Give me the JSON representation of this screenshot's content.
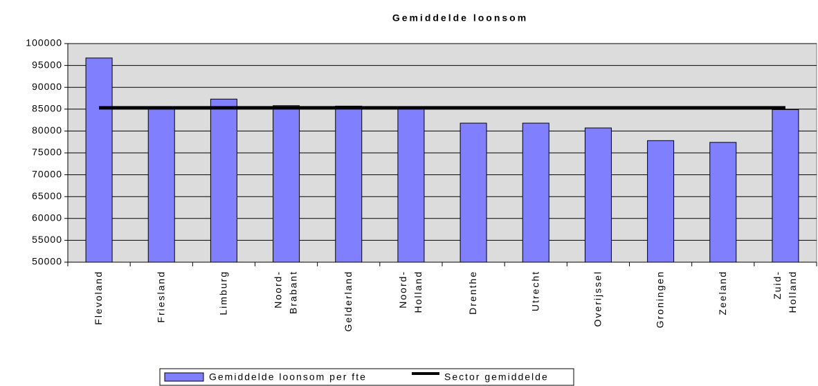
{
  "chart_data": {
    "type": "bar",
    "title": "Gemiddelde loonsom",
    "categories": [
      "Flevoland",
      "Friesland",
      "Limburg",
      "Noord-\nBrabant",
      "Gelderland",
      "Noord-\nHolland",
      "Drenthe",
      "Utrecht",
      "Overijssel",
      "Groningen",
      "Zeeland",
      "Zuid-\nHolland"
    ],
    "series": [
      {
        "name": "Gemiddelde loonsom per fte",
        "color": "#8080ff",
        "type": "bar",
        "values": [
          96700,
          85000,
          87300,
          85800,
          85700,
          85100,
          81800,
          81800,
          80700,
          77800,
          77400,
          84900
        ]
      },
      {
        "name": "Sector gemiddelde",
        "color": "#000000",
        "type": "line",
        "values": [
          85300,
          85300,
          85300,
          85300,
          85300,
          85300,
          85300,
          85300,
          85300,
          85300,
          85300,
          85300
        ]
      }
    ],
    "ylim": [
      50000,
      100000
    ],
    "yticks": [
      50000,
      55000,
      60000,
      65000,
      70000,
      75000,
      80000,
      85000,
      90000,
      95000,
      100000
    ],
    "grid": true,
    "legend": "bottom"
  }
}
